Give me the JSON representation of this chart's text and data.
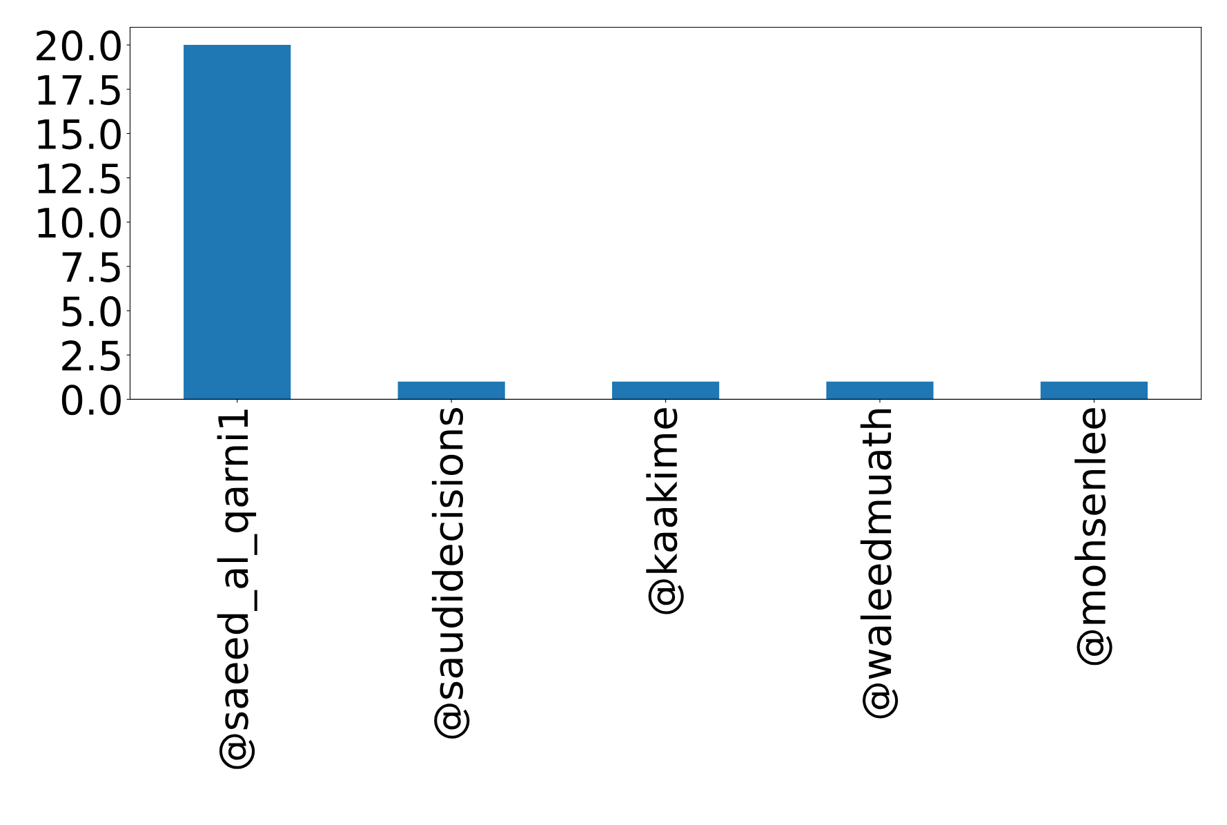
{
  "chart_data": {
    "type": "bar",
    "categories": [
      "@saeed_al_qarni1",
      "@saudidecisions",
      "@kaakime",
      "@waleedmuath",
      "@mohsenlee"
    ],
    "values": [
      20,
      1,
      1,
      1,
      1
    ],
    "color": "#1f77b4",
    "ylim": [
      0,
      21
    ],
    "yticks": [
      {
        "value": 0,
        "label": "0.0"
      },
      {
        "value": 2.5,
        "label": "2.5"
      },
      {
        "value": 5,
        "label": "5.0"
      },
      {
        "value": 7.5,
        "label": "7.5"
      },
      {
        "value": 10,
        "label": "10.0"
      },
      {
        "value": 12.5,
        "label": "12.5"
      },
      {
        "value": 15,
        "label": "15.0"
      },
      {
        "value": 17.5,
        "label": "17.5"
      },
      {
        "value": 20,
        "label": "20.0"
      }
    ],
    "grid": false,
    "legend": false
  }
}
